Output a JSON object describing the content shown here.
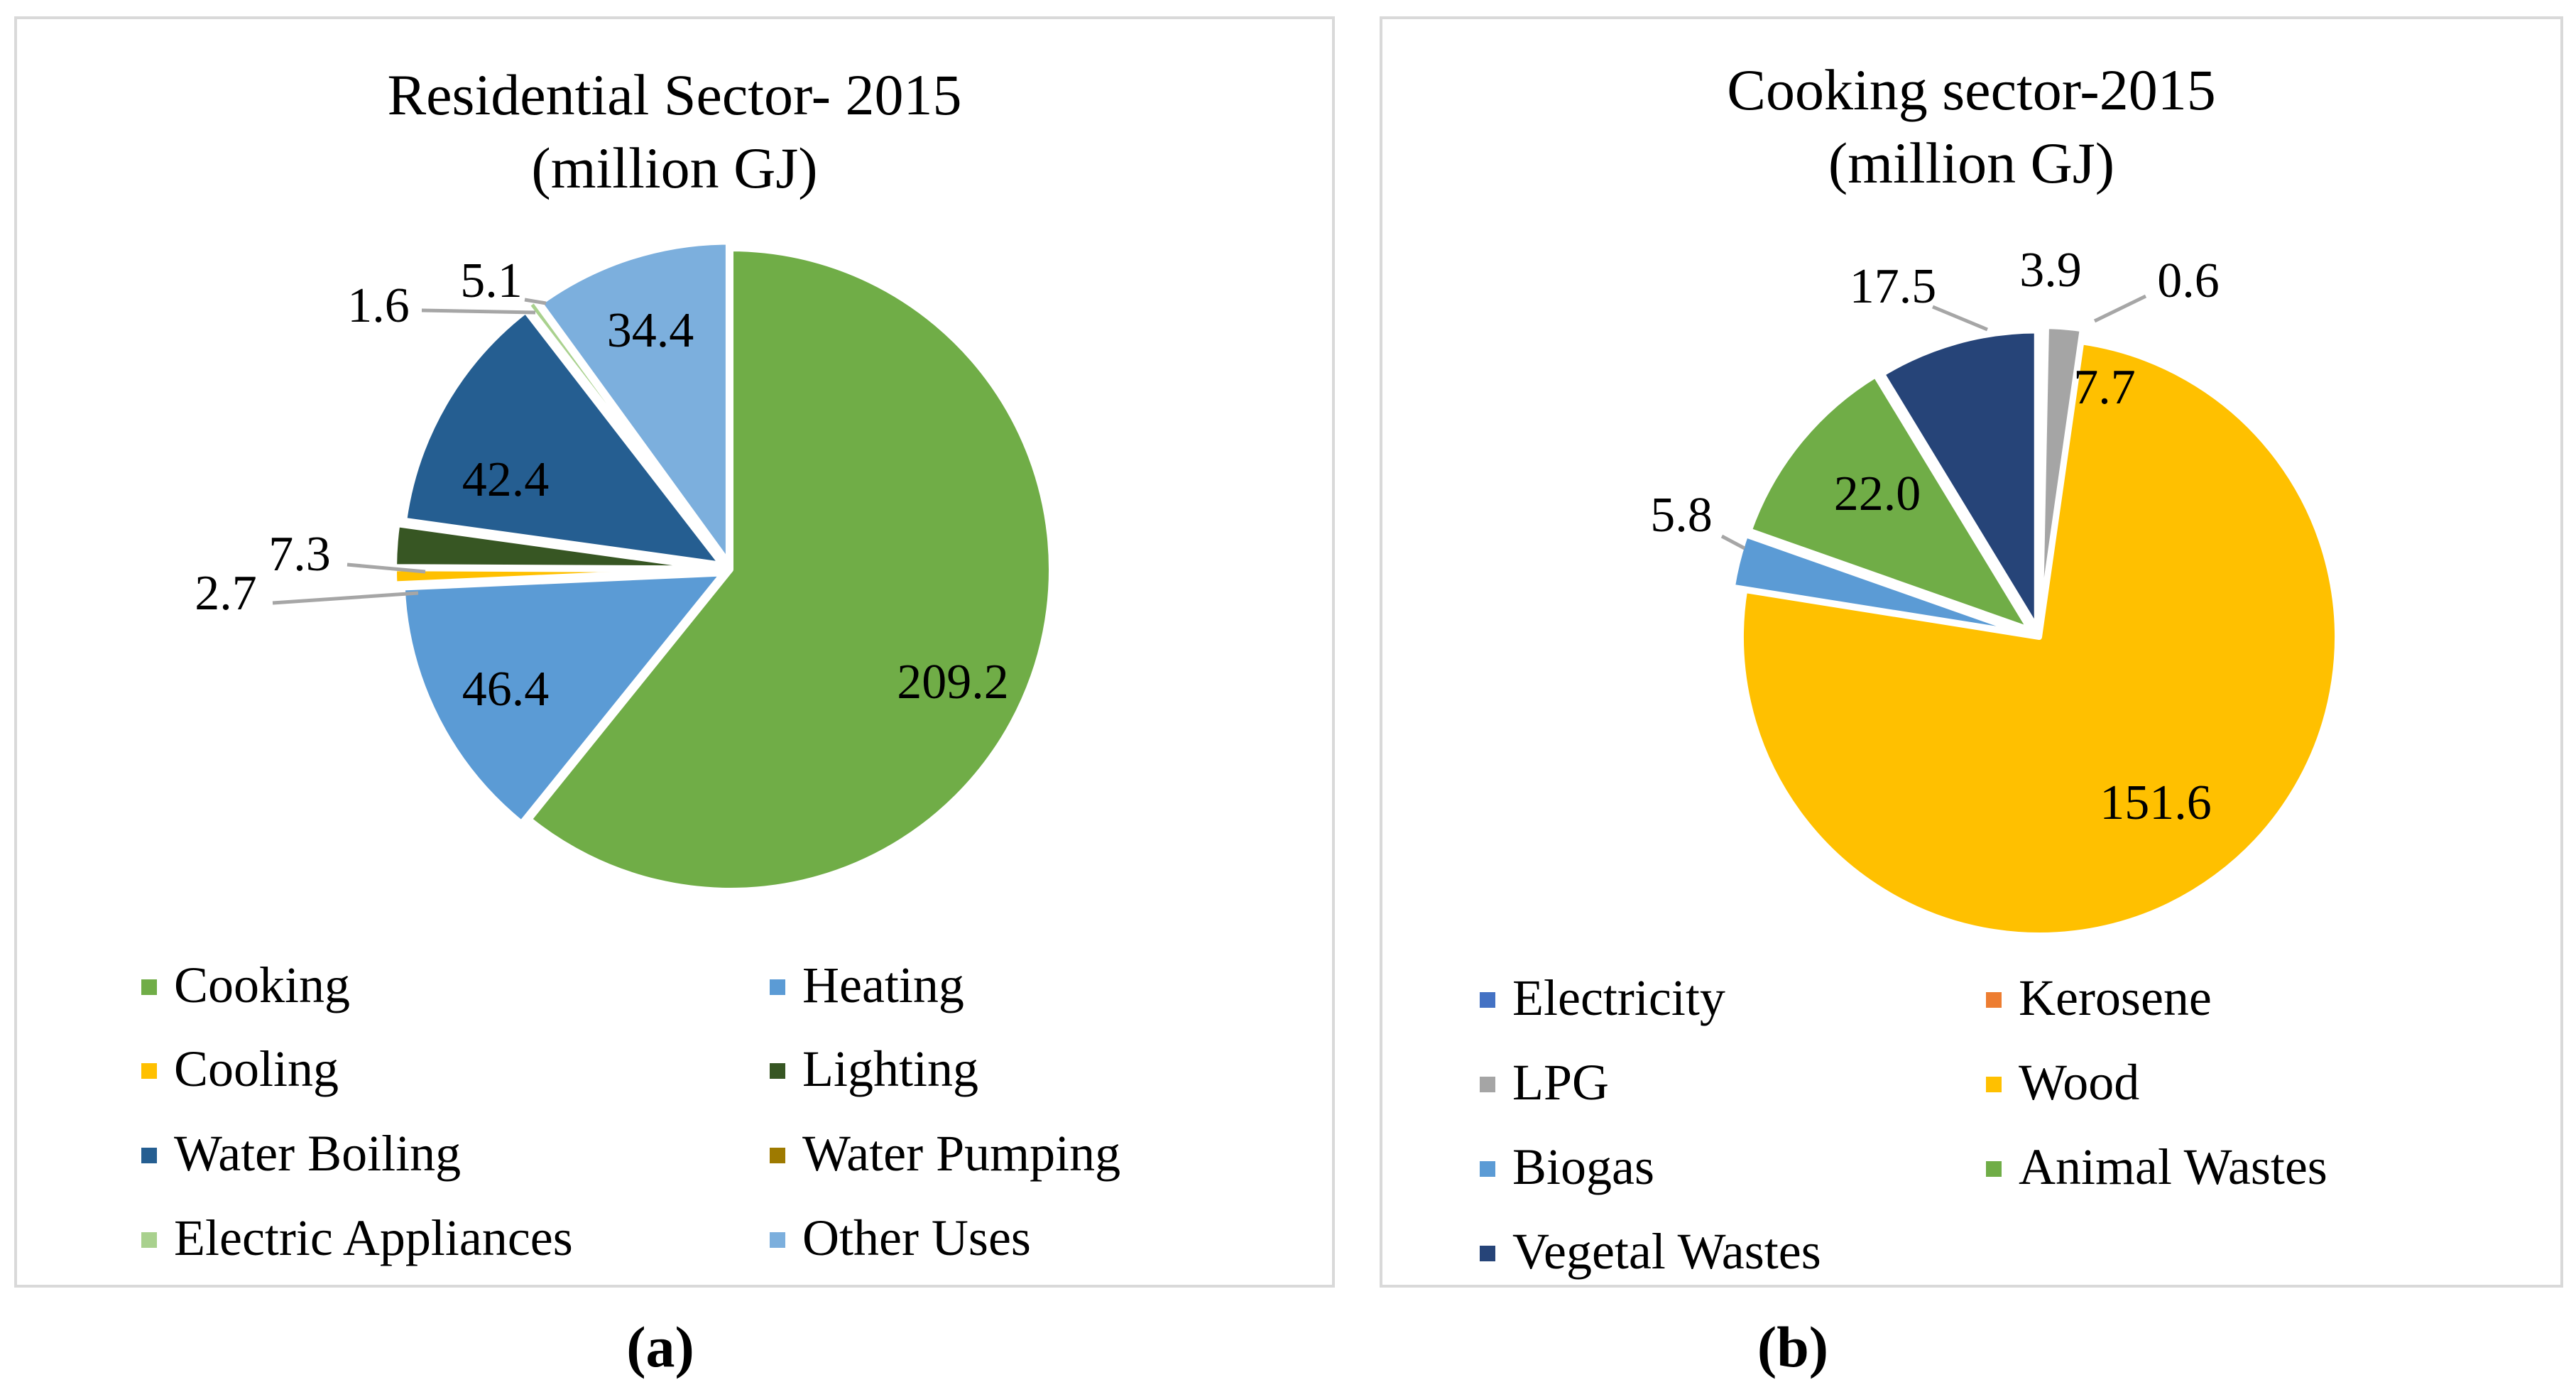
{
  "chart_data": [
    {
      "type": "pie",
      "title": "Residential Sector- 2015",
      "subtitle": "(million GJ)",
      "caption": "(a)",
      "start_angle_deg": 0,
      "direction": "clockwise",
      "legend_position": "bottom",
      "slices": [
        {
          "label": "Cooking",
          "value": 209.2,
          "display": "209.2",
          "color": "#70ad47"
        },
        {
          "label": "Heating",
          "value": 46.4,
          "display": "46.4",
          "color": "#5b9bd5"
        },
        {
          "label": "Cooling",
          "value": 2.7,
          "display": "2.7",
          "color": "#ffc000"
        },
        {
          "label": "Lighting",
          "value": 7.3,
          "display": "7.3",
          "color": "#375623"
        },
        {
          "label": "Water Boiling",
          "value": 42.4,
          "display": "42.4",
          "color": "#255e91"
        },
        {
          "label": "Water Pumping",
          "value": 0.05,
          "display": "",
          "color": "#9e7a00"
        },
        {
          "label": "Electric Appliances",
          "value": 1.6,
          "display": "1.6",
          "color": "#a9d18e"
        },
        {
          "label": "Other Uses",
          "value": 34.4,
          "display": "34.4",
          "color": "#7cafdd"
        }
      ],
      "extra_labels": [
        "5.1"
      ]
    },
    {
      "type": "pie",
      "title": "Cooking sector-2015",
      "subtitle": "(million GJ)",
      "caption": "(b)",
      "start_angle_deg": 0,
      "direction": "clockwise",
      "legend_position": "bottom",
      "slices": [
        {
          "label": "Electricity",
          "value": 0.6,
          "display": "0.6",
          "color": "#4472c4"
        },
        {
          "label": "Kerosene",
          "value": 0.05,
          "display": "",
          "color": "#ed7d31"
        },
        {
          "label": "LPG",
          "value": 3.9,
          "display": "3.9",
          "color": "#a5a5a5"
        },
        {
          "label": "Wood",
          "value": 151.6,
          "display": "151.6",
          "color": "#ffc000"
        },
        {
          "label": "Biogas",
          "value": 5.8,
          "display": "5.8",
          "color": "#5b9bd5"
        },
        {
          "label": "Animal Wastes",
          "value": 22.0,
          "display": "22.0",
          "color": "#70ad47"
        },
        {
          "label": "Vegetal Wastes",
          "value": 17.5,
          "display": "17.5",
          "color": "#264478"
        }
      ],
      "extra_labels": [
        "7.7"
      ]
    }
  ]
}
